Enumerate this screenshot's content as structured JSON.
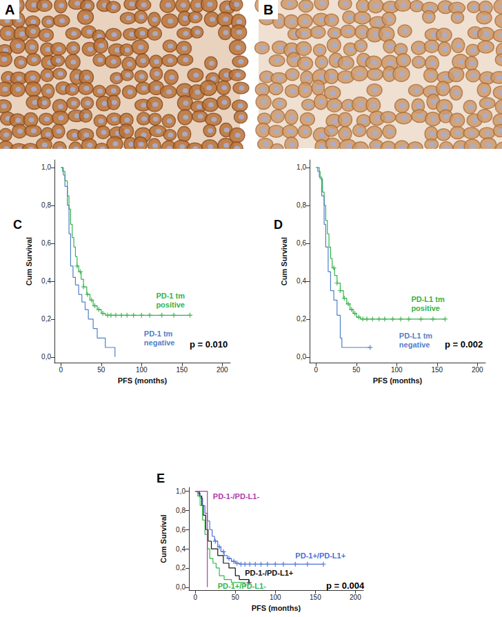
{
  "images": [
    {
      "label": "A"
    },
    {
      "label": "B"
    }
  ],
  "chart_data": [
    {
      "type": "line",
      "title": "C",
      "x_label": "PFS (months)",
      "y_label": "Cum Survival",
      "xlim": [
        -8,
        210
      ],
      "xticks": [
        0,
        50,
        100,
        150,
        200
      ],
      "ylim": [
        -0.03,
        1.04
      ],
      "yticks": [
        {
          "value": 0,
          "label": "0,0"
        },
        {
          "value": 0.2,
          "label": "0,2"
        },
        {
          "value": 0.4,
          "label": "0,4"
        },
        {
          "value": 0.6,
          "label": "0,6"
        },
        {
          "value": 0.8,
          "label": "0,8"
        },
        {
          "value": 1.0,
          "label": "1,0"
        }
      ],
      "grid": false,
      "line_style": "step",
      "annotations": [
        "p = 0.010"
      ],
      "series": [
        {
          "name": "PD-1 tm\npositive",
          "color": "#33b24a",
          "marker": "cross",
          "x": [
            0,
            2,
            5,
            8,
            10,
            12,
            14,
            16,
            18,
            20,
            22,
            25,
            28,
            32,
            36,
            40,
            45,
            50,
            55,
            160
          ],
          "values": [
            1.0,
            0.98,
            0.93,
            0.85,
            0.78,
            0.7,
            0.63,
            0.58,
            0.53,
            0.48,
            0.45,
            0.41,
            0.37,
            0.33,
            0.3,
            0.27,
            0.25,
            0.23,
            0.22,
            0.22
          ],
          "censored": [
            20,
            24,
            28,
            33,
            38,
            42,
            47,
            52,
            58,
            62,
            68,
            75,
            82,
            90,
            100,
            110,
            125,
            140,
            160
          ]
        },
        {
          "name": "PD-1 tm\nnegative",
          "color": "#4f7fc9",
          "marker": "cross",
          "x": [
            0,
            3,
            5,
            8,
            10,
            12,
            15,
            18,
            22,
            26,
            30,
            34,
            40,
            45,
            55,
            67
          ],
          "values": [
            1.0,
            0.96,
            0.9,
            0.8,
            0.65,
            0.48,
            0.42,
            0.38,
            0.33,
            0.29,
            0.25,
            0.2,
            0.15,
            0.1,
            0.05,
            0.0
          ],
          "censored": []
        }
      ]
    },
    {
      "type": "line",
      "title": "D",
      "x_label": "PFS (months)",
      "y_label": "Cum Survival",
      "xlim": [
        -8,
        210
      ],
      "xticks": [
        0,
        50,
        100,
        150,
        200
      ],
      "ylim": [
        -0.03,
        1.04
      ],
      "yticks": [
        {
          "value": 0,
          "label": "0,0"
        },
        {
          "value": 0.2,
          "label": "0,2"
        },
        {
          "value": 0.4,
          "label": "0,4"
        },
        {
          "value": 0.6,
          "label": "0,6"
        },
        {
          "value": 0.8,
          "label": "0,8"
        },
        {
          "value": 1.0,
          "label": "1,0"
        }
      ],
      "grid": false,
      "line_style": "step",
      "annotations": [
        "p = 0.002"
      ],
      "series": [
        {
          "name": "PD-L1 tm\npositive",
          "color": "#33b24a",
          "marker": "cross",
          "x": [
            0,
            2,
            5,
            8,
            10,
            12,
            14,
            16,
            18,
            20,
            23,
            26,
            30,
            34,
            38,
            42,
            46,
            50,
            55,
            160
          ],
          "values": [
            1.0,
            0.98,
            0.94,
            0.87,
            0.8,
            0.72,
            0.65,
            0.58,
            0.52,
            0.47,
            0.43,
            0.39,
            0.35,
            0.31,
            0.28,
            0.25,
            0.23,
            0.21,
            0.2,
            0.2
          ],
          "censored": [
            22,
            26,
            30,
            35,
            40,
            44,
            48,
            53,
            58,
            63,
            70,
            78,
            85,
            95,
            105,
            115,
            130,
            145,
            160
          ]
        },
        {
          "name": "PD-L1 tm\nnegative",
          "color": "#4f7fc9",
          "marker": "cross",
          "x": [
            0,
            4,
            7,
            10,
            12,
            15,
            18,
            22,
            26,
            30,
            32,
            67
          ],
          "values": [
            1.0,
            0.95,
            0.85,
            0.7,
            0.58,
            0.45,
            0.35,
            0.3,
            0.22,
            0.1,
            0.05,
            0.05
          ],
          "censored": [
            67
          ]
        }
      ]
    },
    {
      "type": "line",
      "title": "E",
      "x_label": "PFS (months)",
      "y_label": "Cum Survival",
      "xlim": [
        -8,
        210
      ],
      "xticks": [
        0,
        50,
        100,
        150,
        200
      ],
      "ylim": [
        -0.03,
        1.04
      ],
      "yticks": [
        {
          "value": 0,
          "label": "0,0"
        },
        {
          "value": 0.2,
          "label": "0,2"
        },
        {
          "value": 0.4,
          "label": "0,4"
        },
        {
          "value": 0.6,
          "label": "0,6"
        },
        {
          "value": 0.8,
          "label": "0,8"
        },
        {
          "value": 1.0,
          "label": "1,0"
        }
      ],
      "grid": false,
      "line_style": "step",
      "annotations": [
        "p = 0.004"
      ],
      "series": [
        {
          "name": "PD-1+/PD-L1+",
          "color": "#4a6fd8",
          "marker": "cross",
          "x": [
            0,
            3,
            6,
            9,
            12,
            15,
            18,
            21,
            24,
            28,
            32,
            36,
            40,
            45,
            50,
            55,
            160
          ],
          "values": [
            1.0,
            0.98,
            0.93,
            0.85,
            0.77,
            0.69,
            0.6,
            0.53,
            0.48,
            0.42,
            0.37,
            0.33,
            0.3,
            0.27,
            0.25,
            0.24,
            0.24
          ],
          "censored": [
            25,
            30,
            35,
            42,
            48,
            52,
            57,
            62,
            68,
            75,
            82,
            90,
            100,
            110,
            125,
            140,
            160
          ]
        },
        {
          "name": "PD-1-/PD-L1+",
          "color": "#111111",
          "marker": "cross",
          "x": [
            0,
            5,
            8,
            10,
            13,
            16,
            20,
            28,
            35,
            42,
            50,
            55,
            67
          ],
          "values": [
            1.0,
            0.95,
            0.85,
            0.75,
            0.6,
            0.48,
            0.4,
            0.33,
            0.25,
            0.2,
            0.12,
            0.08,
            0.05
          ],
          "censored": [
            67
          ]
        },
        {
          "name": "PD-1+/PD-L1-",
          "color": "#2fb84a",
          "marker": "cross",
          "x": [
            0,
            3,
            6,
            9,
            12,
            15,
            18,
            22,
            26,
            30,
            36,
            45,
            62
          ],
          "values": [
            1.0,
            0.95,
            0.85,
            0.7,
            0.55,
            0.4,
            0.3,
            0.25,
            0.2,
            0.12,
            0.08,
            0.05,
            0.0
          ],
          "censored": []
        },
        {
          "name": "PD-1-/PD-L1-",
          "color": "#b03ab0",
          "marker": "cross",
          "x": [
            0,
            15
          ],
          "values": [
            1.0,
            0.0
          ],
          "censored": []
        }
      ]
    }
  ]
}
